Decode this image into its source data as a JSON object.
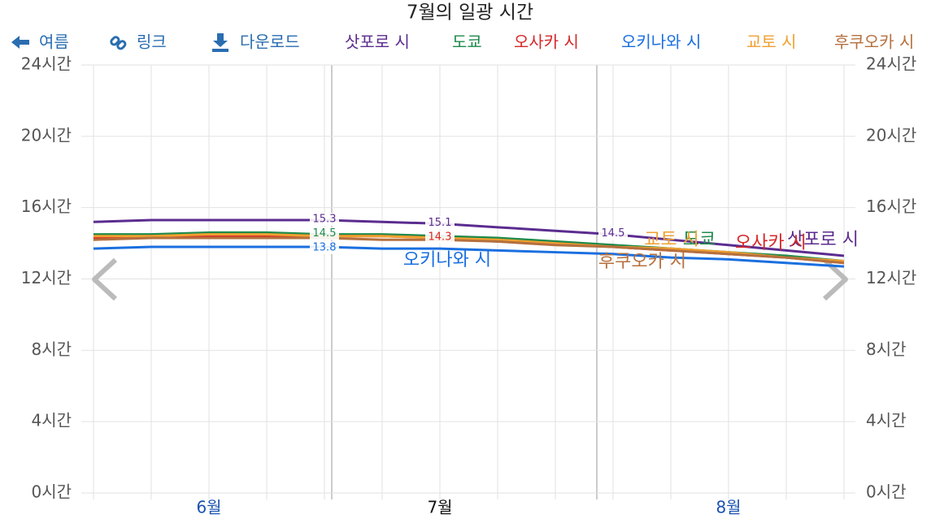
{
  "chart_data": {
    "type": "line",
    "title": "7월의 일광 시간",
    "toolbar": [
      "여름",
      "링크",
      "다운로드"
    ],
    "categories": [
      null,
      null,
      "6월",
      null,
      null,
      null,
      "7월",
      null,
      null,
      null,
      null,
      "8월",
      null,
      null
    ],
    "series": [
      {
        "name": "삿포로 시",
        "color": "#5b2c8f",
        "values": [
          15.2,
          15.3,
          15.3,
          15.3,
          15.3,
          15.2,
          15.1,
          14.9,
          14.7,
          14.5,
          14.2,
          13.9,
          13.6,
          13.3
        ]
      },
      {
        "name": "도쿄",
        "color": "#1e8a4c",
        "values": [
          14.5,
          14.5,
          14.6,
          14.6,
          14.5,
          14.5,
          14.4,
          14.3,
          14.1,
          13.9,
          13.7,
          13.5,
          13.3,
          13.0
        ]
      },
      {
        "name": "오사카 시",
        "color": "#d62728",
        "values": [
          14.3,
          14.4,
          14.4,
          14.4,
          14.4,
          14.4,
          14.3,
          14.1,
          14.0,
          13.8,
          13.6,
          13.4,
          13.2,
          12.9
        ]
      },
      {
        "name": "오키나와 시",
        "color": "#1a6fe0",
        "values": [
          13.7,
          13.8,
          13.8,
          13.8,
          13.8,
          13.7,
          13.7,
          13.6,
          13.5,
          13.4,
          13.2,
          13.1,
          12.9,
          12.7
        ]
      },
      {
        "name": "교토 시",
        "color": "#f0a030",
        "values": [
          14.4,
          14.4,
          14.5,
          14.5,
          14.4,
          14.4,
          14.3,
          14.2,
          14.0,
          13.8,
          13.7,
          13.5,
          13.2,
          13.0
        ]
      },
      {
        "name": "후쿠오카 시",
        "color": "#b5703e",
        "values": [
          14.2,
          14.3,
          14.3,
          14.3,
          14.3,
          14.2,
          14.2,
          14.1,
          13.9,
          13.8,
          13.6,
          13.4,
          13.2,
          12.9
        ]
      }
    ],
    "ylim": [
      0,
      24
    ],
    "yticks": [
      {
        "value": 0,
        "label": "0시간"
      },
      {
        "value": 4,
        "label": "4시간"
      },
      {
        "value": 8,
        "label": "8시간"
      },
      {
        "value": 12,
        "label": "12시간"
      },
      {
        "value": 16,
        "label": "16시간"
      },
      {
        "value": 20,
        "label": "20시간"
      },
      {
        "value": 24,
        "label": "24시간"
      }
    ],
    "grid": true
  }
}
